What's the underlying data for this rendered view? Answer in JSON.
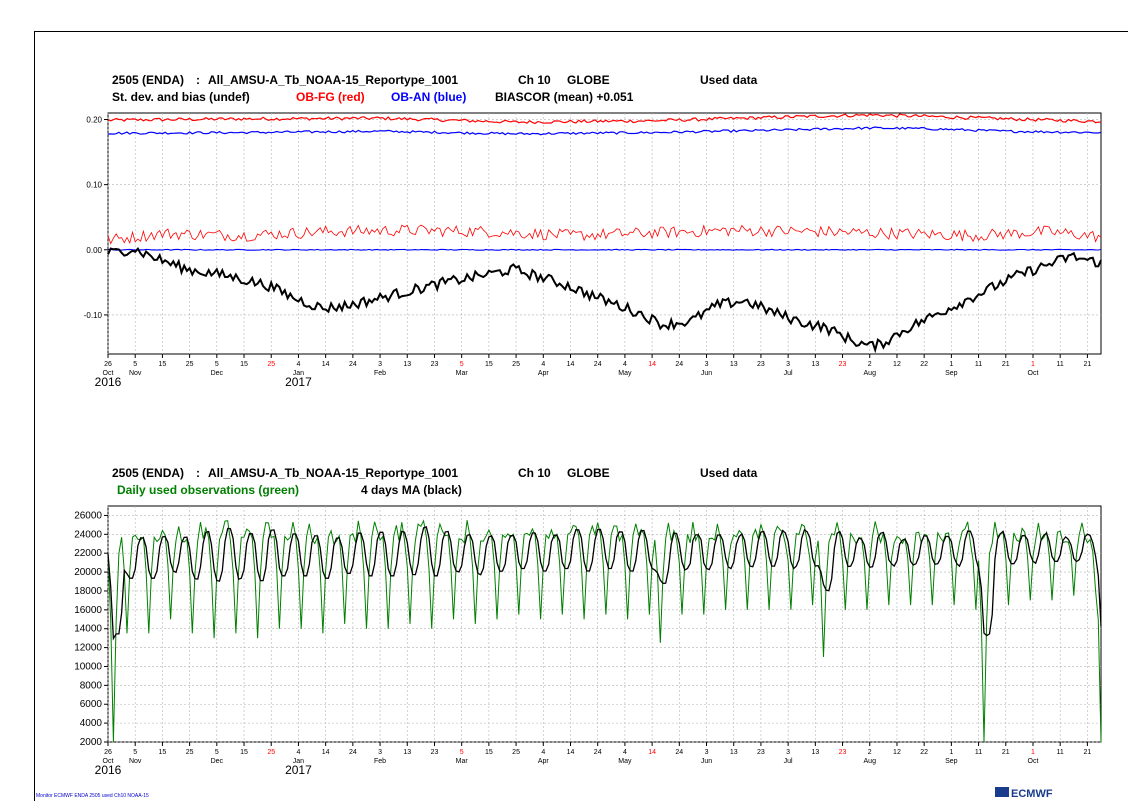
{
  "chart_data": [
    {
      "type": "line",
      "title_line1": {
        "run_id": "2505 (ENDA)",
        "separator": ":",
        "dataset": "All_AMSU-A_Tb_NOAA-15_Reportype_1001",
        "channel": "Ch 10",
        "region": "GLOBE",
        "status": "Used data"
      },
      "title_line2": {
        "prefix": "St. dev. and bias (undef)",
        "red_label": "OB-FG (red)",
        "blue_label": "OB-AN (blue)",
        "suffix": "BIASCOR (mean) +0.051"
      },
      "x_start_date": "2016-10-26",
      "x_end_date": "2017-10-26",
      "ylim": [
        -0.16,
        0.21
      ],
      "yticks": [
        0.2,
        0.1,
        0.0,
        -0.1
      ],
      "ytick_labels": [
        "0.20",
        "0.10",
        "0.00",
        "-0.10"
      ],
      "series": [
        {
          "color": "#ff0000",
          "points": [
            [
              "2016-10-26",
              0.199
            ],
            [
              "2016-12-15",
              0.201
            ],
            [
              "2017-02-03",
              0.202
            ],
            [
              "2017-03-25",
              0.196
            ],
            [
              "2017-05-14",
              0.198
            ],
            [
              "2017-07-03",
              0.204
            ],
            [
              "2017-08-02",
              0.207
            ],
            [
              "2017-08-22",
              0.205
            ],
            [
              "2017-09-21",
              0.201
            ],
            [
              "2017-10-26",
              0.197
            ]
          ]
        },
        {
          "color": "#0000ff",
          "points": [
            [
              "2016-10-26",
              0.179
            ],
            [
              "2016-12-15",
              0.18
            ],
            [
              "2017-02-03",
              0.182
            ],
            [
              "2017-03-25",
              0.178
            ],
            [
              "2017-05-14",
              0.18
            ],
            [
              "2017-07-03",
              0.184
            ],
            [
              "2017-08-02",
              0.187
            ],
            [
              "2017-08-22",
              0.186
            ],
            [
              "2017-09-21",
              0.182
            ],
            [
              "2017-10-26",
              0.18
            ]
          ]
        },
        {
          "color": "#ff0000",
          "points": [
            [
              "2016-10-26",
              0.015
            ],
            [
              "2016-11-15",
              0.025
            ],
            [
              "2016-12-15",
              0.022
            ],
            [
              "2017-01-14",
              0.028
            ],
            [
              "2017-02-13",
              0.03
            ],
            [
              "2017-03-15",
              0.028
            ],
            [
              "2017-04-14",
              0.022
            ],
            [
              "2017-05-14",
              0.026
            ],
            [
              "2017-06-13",
              0.03
            ],
            [
              "2017-07-13",
              0.028
            ],
            [
              "2017-08-12",
              0.025
            ],
            [
              "2017-09-11",
              0.022
            ],
            [
              "2017-10-06",
              0.028
            ],
            [
              "2017-10-26",
              0.02
            ]
          ]
        },
        {
          "color": "#0000ff",
          "points": [
            [
              "2016-10-26",
              0.0
            ],
            [
              "2017-10-26",
              0.0
            ]
          ]
        },
        {
          "color": "#000000",
          "points": [
            [
              "2016-10-26",
              -0.005
            ],
            [
              "2016-10-30",
              -0.003
            ],
            [
              "2016-11-04",
              0.002
            ],
            [
              "2016-11-14",
              -0.015
            ],
            [
              "2016-11-24",
              -0.03
            ],
            [
              "2016-12-09",
              -0.04
            ],
            [
              "2016-12-24",
              -0.055
            ],
            [
              "2017-01-03",
              -0.075
            ],
            [
              "2017-01-13",
              -0.09
            ],
            [
              "2017-01-23",
              -0.085
            ],
            [
              "2017-02-07",
              -0.07
            ],
            [
              "2017-02-27",
              -0.05
            ],
            [
              "2017-03-14",
              -0.038
            ],
            [
              "2017-03-24",
              -0.03
            ],
            [
              "2017-04-03",
              -0.042
            ],
            [
              "2017-04-13",
              -0.055
            ],
            [
              "2017-04-23",
              -0.072
            ],
            [
              "2017-05-08",
              -0.095
            ],
            [
              "2017-05-18",
              -0.115
            ],
            [
              "2017-05-28",
              -0.11
            ],
            [
              "2017-06-07",
              -0.085
            ],
            [
              "2017-06-17",
              -0.078
            ],
            [
              "2017-06-27",
              -0.095
            ],
            [
              "2017-07-07",
              -0.11
            ],
            [
              "2017-07-17",
              -0.12
            ],
            [
              "2017-07-27",
              -0.14
            ],
            [
              "2017-08-02",
              -0.148
            ],
            [
              "2017-08-06",
              -0.145
            ],
            [
              "2017-08-16",
              -0.12
            ],
            [
              "2017-08-26",
              -0.1
            ],
            [
              "2017-09-05",
              -0.08
            ],
            [
              "2017-09-15",
              -0.06
            ],
            [
              "2017-09-25",
              -0.04
            ],
            [
              "2017-10-05",
              -0.025
            ],
            [
              "2017-10-15",
              -0.01
            ],
            [
              "2017-10-20",
              -0.015
            ],
            [
              "2017-10-26",
              -0.02
            ]
          ]
        }
      ]
    },
    {
      "type": "line",
      "title_line1": {
        "run_id": "2505 (ENDA)",
        "separator": ":",
        "dataset": "All_AMSU-A_Tb_NOAA-15_Reportype_1001",
        "channel": "Ch 10",
        "region": "GLOBE",
        "status": "Used data"
      },
      "title_line2": {
        "green_label": "Daily used observations (green)",
        "black_label": "4 days MA (black)"
      },
      "x_start_date": "2016-10-26",
      "x_end_date": "2017-10-26",
      "ylim": [
        2000,
        27000
      ],
      "yticks": [
        26000,
        24000,
        22000,
        20000,
        18000,
        16000,
        14000,
        12000,
        10000,
        8000,
        6000,
        4000,
        2000
      ],
      "ytick_labels": [
        "26000",
        "24000",
        "22000",
        "20000",
        "18000",
        "16000",
        "14000",
        "12000",
        "10000",
        "8000",
        "6000",
        "4000",
        "2000"
      ],
      "series": [
        {
          "name": "Daily used observations",
          "color": "#008000",
          "typical_high": 25500,
          "typical_low": 14000,
          "minima": [
            [
              "2016-10-28",
              2000
            ],
            [
              "2016-11-02",
              13500
            ],
            [
              "2016-11-10",
              13500
            ],
            [
              "2016-11-18",
              15000
            ],
            [
              "2016-11-26",
              13500
            ],
            [
              "2016-12-04",
              13000
            ],
            [
              "2016-12-12",
              13500
            ],
            [
              "2016-12-20",
              13000
            ],
            [
              "2016-12-28",
              14000
            ],
            [
              "2017-01-05",
              14000
            ],
            [
              "2017-01-13",
              13500
            ],
            [
              "2017-01-21",
              14500
            ],
            [
              "2017-01-29",
              14000
            ],
            [
              "2017-02-06",
              14000
            ],
            [
              "2017-02-14",
              14500
            ],
            [
              "2017-02-22",
              14000
            ],
            [
              "2017-03-02",
              15000
            ],
            [
              "2017-03-10",
              14500
            ],
            [
              "2017-03-18",
              15000
            ],
            [
              "2017-03-26",
              15500
            ],
            [
              "2017-04-03",
              15000
            ],
            [
              "2017-04-11",
              15500
            ],
            [
              "2017-04-19",
              15000
            ],
            [
              "2017-04-27",
              15500
            ],
            [
              "2017-05-05",
              15000
            ],
            [
              "2017-05-13",
              15500
            ],
            [
              "2017-05-17",
              12500
            ],
            [
              "2017-05-25",
              15500
            ],
            [
              "2017-06-02",
              15500
            ],
            [
              "2017-06-10",
              16000
            ],
            [
              "2017-06-18",
              16000
            ],
            [
              "2017-06-26",
              16000
            ],
            [
              "2017-07-04",
              16000
            ],
            [
              "2017-07-12",
              16500
            ],
            [
              "2017-07-16",
              11000
            ],
            [
              "2017-07-24",
              16000
            ],
            [
              "2017-08-01",
              16000
            ],
            [
              "2017-08-09",
              16500
            ],
            [
              "2017-08-17",
              16500
            ],
            [
              "2017-08-25",
              16500
            ],
            [
              "2017-09-02",
              16500
            ],
            [
              "2017-09-10",
              16000
            ],
            [
              "2017-09-13",
              2000
            ],
            [
              "2017-09-22",
              16500
            ],
            [
              "2017-09-30",
              17000
            ],
            [
              "2017-10-08",
              17000
            ],
            [
              "2017-10-16",
              17500
            ],
            [
              "2017-10-24",
              18000
            ],
            [
              "2017-10-26",
              2000
            ]
          ]
        },
        {
          "name": "4 days MA",
          "color": "#000000"
        }
      ]
    }
  ],
  "x_axis": {
    "day_ticks": [
      {
        "label": "26",
        "date": "2016-10-26"
      },
      {
        "label": "5",
        "date": "2016-11-05"
      },
      {
        "label": "15",
        "date": "2016-11-15"
      },
      {
        "label": "25",
        "date": "2016-11-25"
      },
      {
        "label": "5",
        "date": "2016-12-05"
      },
      {
        "label": "15",
        "date": "2016-12-15"
      },
      {
        "label": "25",
        "date": "2016-12-25",
        "red": true
      },
      {
        "label": "4",
        "date": "2017-01-04"
      },
      {
        "label": "14",
        "date": "2017-01-14"
      },
      {
        "label": "24",
        "date": "2017-01-24"
      },
      {
        "label": "3",
        "date": "2017-02-03"
      },
      {
        "label": "13",
        "date": "2017-02-13"
      },
      {
        "label": "23",
        "date": "2017-02-23"
      },
      {
        "label": "5",
        "date": "2017-03-05",
        "red": true
      },
      {
        "label": "15",
        "date": "2017-03-15"
      },
      {
        "label": "25",
        "date": "2017-03-25"
      },
      {
        "label": "4",
        "date": "2017-04-04"
      },
      {
        "label": "14",
        "date": "2017-04-14"
      },
      {
        "label": "24",
        "date": "2017-04-24"
      },
      {
        "label": "4",
        "date": "2017-05-04"
      },
      {
        "label": "14",
        "date": "2017-05-14",
        "red": true
      },
      {
        "label": "24",
        "date": "2017-05-24"
      },
      {
        "label": "3",
        "date": "2017-06-03"
      },
      {
        "label": "13",
        "date": "2017-06-13"
      },
      {
        "label": "23",
        "date": "2017-06-23"
      },
      {
        "label": "3",
        "date": "2017-07-03"
      },
      {
        "label": "13",
        "date": "2017-07-13"
      },
      {
        "label": "23",
        "date": "2017-07-23",
        "red": true
      },
      {
        "label": "2",
        "date": "2017-08-02"
      },
      {
        "label": "12",
        "date": "2017-08-12"
      },
      {
        "label": "22",
        "date": "2017-08-22"
      },
      {
        "label": "1",
        "date": "2017-09-01"
      },
      {
        "label": "11",
        "date": "2017-09-11"
      },
      {
        "label": "21",
        "date": "2017-09-21"
      },
      {
        "label": "1",
        "date": "2017-10-01",
        "red": true
      },
      {
        "label": "11",
        "date": "2017-10-11"
      },
      {
        "label": "21",
        "date": "2017-10-21"
      }
    ],
    "month_labels": [
      {
        "label": "Oct",
        "date": "2016-10-26"
      },
      {
        "label": "Nov",
        "date": "2016-11-05"
      },
      {
        "label": "Dec",
        "date": "2016-12-05"
      },
      {
        "label": "Jan",
        "date": "2017-01-04"
      },
      {
        "label": "Feb",
        "date": "2017-02-03"
      },
      {
        "label": "Mar",
        "date": "2017-03-05"
      },
      {
        "label": "Apr",
        "date": "2017-04-04"
      },
      {
        "label": "May",
        "date": "2017-05-04"
      },
      {
        "label": "Jun",
        "date": "2017-06-03"
      },
      {
        "label": "Jul",
        "date": "2017-07-03"
      },
      {
        "label": "Aug",
        "date": "2017-08-02"
      },
      {
        "label": "Sep",
        "date": "2017-09-01"
      },
      {
        "label": "Oct",
        "date": "2017-10-01"
      }
    ],
    "year_labels": [
      {
        "label": "2016",
        "date": "2016-10-26"
      },
      {
        "label": "2017",
        "date": "2017-01-04"
      }
    ]
  },
  "footer": {
    "metadata_text": "Monitor  ECMWF ENDA 2505 used  Ch10  NOAA-15",
    "logo_text": "ECMWF"
  },
  "colors": {
    "red": "#ff0000",
    "blue": "#0000ff",
    "green": "#008000",
    "black": "#000000",
    "grid": "#b4b4b4"
  }
}
